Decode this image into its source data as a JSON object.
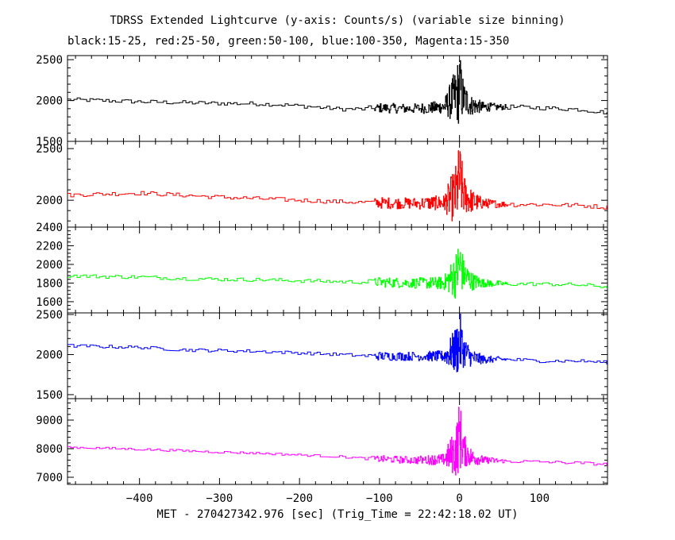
{
  "title": "TDRSS Extended Lightcurve (y-axis: Counts/s) (variable size binning)",
  "subtitle": "black:15-25, red:25-50, green:50-100, blue:100-350, Magenta:15-350",
  "chart_data": {
    "type": "line",
    "title": "TDRSS Extended Lightcurve (y-axis: Counts/s) (variable size binning)",
    "xlabel": "MET - 270427342.976 [sec] (Trig_Time = 22:42:18.02 UT)",
    "ylabel": "Counts/s",
    "xlim": [
      -490,
      185
    ],
    "x_ticks": [
      -400,
      -300,
      -200,
      -100,
      0,
      100
    ],
    "x_tick_labels": [
      "−400",
      "−300",
      "−200",
      "−100",
      "0",
      "100"
    ],
    "grid": false,
    "panels": [
      {
        "name": "black:15-25",
        "color": "#000000",
        "ylim": [
          1500,
          2550
        ],
        "y_ticks": [
          1500,
          2000,
          2500
        ],
        "x": [
          -490,
          -450,
          -400,
          -350,
          -300,
          -250,
          -200,
          -150,
          -120,
          -100,
          -60,
          -20,
          -5,
          0,
          5,
          15,
          30,
          60,
          100,
          150,
          185
        ],
        "y": [
          2010,
          2000,
          1985,
          1975,
          1965,
          1960,
          1935,
          1895,
          1895,
          1910,
          1900,
          1920,
          2050,
          2150,
          2020,
          1940,
          1920,
          1920,
          1910,
          1890,
          1850
        ],
        "noise": [
          25,
          25,
          25,
          25,
          25,
          25,
          25,
          25,
          25,
          60,
          60,
          80,
          350,
          450,
          220,
          120,
          60,
          30,
          25,
          25,
          25
        ]
      },
      {
        "name": "red:25-50",
        "color": "#ff0000",
        "ylim": [
          1740,
          2570
        ],
        "y_ticks": [
          2000,
          2500
        ],
        "x": [
          -490,
          -450,
          -400,
          -350,
          -300,
          -250,
          -200,
          -150,
          -120,
          -100,
          -60,
          -20,
          -5,
          0,
          5,
          15,
          30,
          60,
          100,
          150,
          185
        ],
        "y": [
          2050,
          2060,
          2070,
          2050,
          2030,
          2015,
          2000,
          1985,
          1980,
          1975,
          1970,
          1975,
          2050,
          2200,
          2060,
          1990,
          1970,
          1960,
          1960,
          1950,
          1930
        ],
        "noise": [
          20,
          20,
          20,
          20,
          20,
          20,
          20,
          20,
          20,
          55,
          55,
          75,
          300,
          380,
          200,
          110,
          50,
          25,
          20,
          20,
          20
        ]
      },
      {
        "name": "green:50-100",
        "color": "#00ff00",
        "ylim": [
          1480,
          2400
        ],
        "y_ticks": [
          1600,
          1800,
          2000,
          2200,
          2400
        ],
        "x": [
          -490,
          -450,
          -400,
          -350,
          -300,
          -250,
          -200,
          -150,
          -120,
          -100,
          -60,
          -20,
          -5,
          0,
          5,
          15,
          30,
          60,
          100,
          150,
          185
        ],
        "y": [
          1880,
          1870,
          1865,
          1850,
          1840,
          1835,
          1825,
          1815,
          1810,
          1810,
          1800,
          1800,
          1880,
          2000,
          1890,
          1820,
          1800,
          1790,
          1790,
          1780,
          1760
        ],
        "noise": [
          20,
          20,
          20,
          20,
          20,
          20,
          20,
          20,
          20,
          55,
          55,
          70,
          250,
          330,
          170,
          100,
          45,
          22,
          20,
          20,
          20
        ]
      },
      {
        "name": "blue:100-350",
        "color": "#0000ff",
        "ylim": [
          1450,
          2520
        ],
        "y_ticks": [
          1500,
          2000,
          2500
        ],
        "x": [
          -490,
          -450,
          -400,
          -350,
          -300,
          -250,
          -200,
          -150,
          -120,
          -100,
          -60,
          -20,
          -5,
          0,
          5,
          15,
          30,
          60,
          100,
          150,
          185
        ],
        "y": [
          2110,
          2100,
          2090,
          2060,
          2050,
          2040,
          2020,
          2000,
          1985,
          1980,
          1980,
          1980,
          2050,
          2150,
          2050,
          1960,
          1940,
          1940,
          1920,
          1920,
          1900
        ],
        "noise": [
          20,
          20,
          20,
          20,
          20,
          20,
          20,
          20,
          20,
          55,
          55,
          70,
          300,
          420,
          200,
          110,
          50,
          25,
          20,
          20,
          20
        ]
      },
      {
        "name": "Magenta:15-350",
        "color": "#ff00ff",
        "ylim": [
          6750,
          9750
        ],
        "y_ticks": [
          7000,
          8000,
          9000
        ],
        "x": [
          -490,
          -450,
          -400,
          -350,
          -300,
          -250,
          -200,
          -150,
          -120,
          -100,
          -60,
          -20,
          -5,
          0,
          5,
          15,
          30,
          60,
          100,
          150,
          185
        ],
        "y": [
          8050,
          8020,
          7980,
          7930,
          7880,
          7840,
          7780,
          7720,
          7660,
          7640,
          7600,
          7620,
          7900,
          8500,
          7950,
          7700,
          7600,
          7560,
          7540,
          7500,
          7450
        ],
        "noise": [
          40,
          40,
          40,
          40,
          40,
          40,
          40,
          40,
          40,
          120,
          130,
          200,
          900,
          1300,
          600,
          300,
          130,
          60,
          50,
          50,
          50
        ]
      }
    ]
  }
}
